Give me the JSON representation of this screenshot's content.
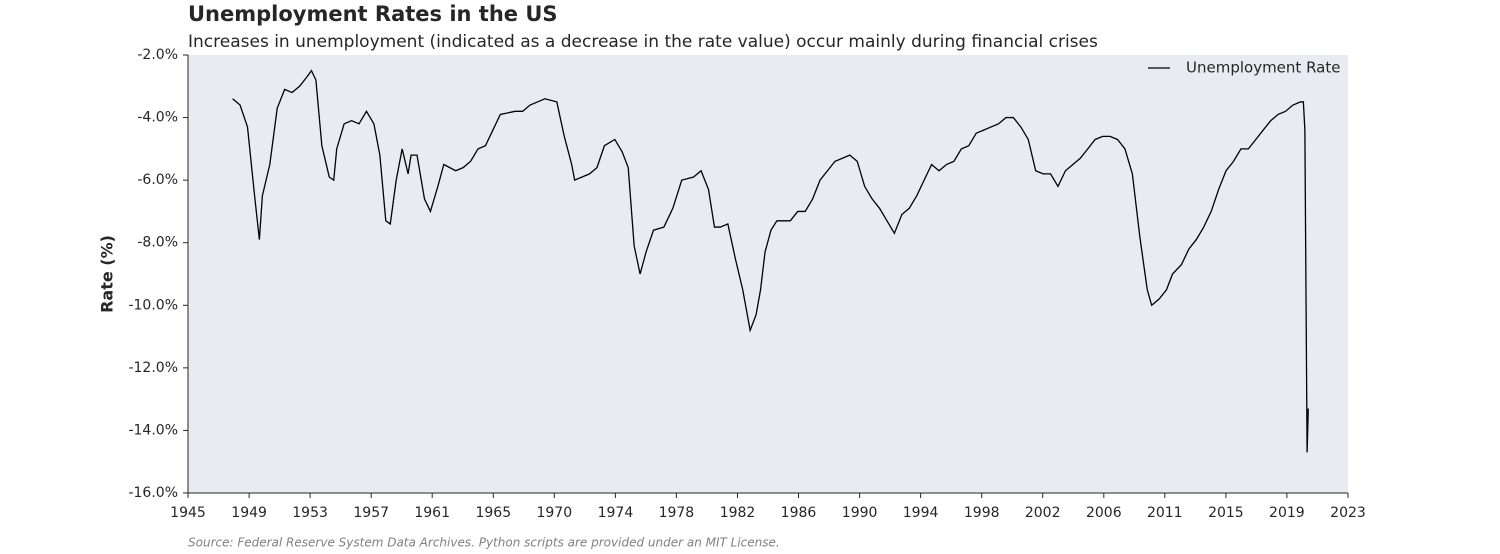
{
  "chart_data": {
    "type": "line",
    "title": "Unemployment Rates in the US",
    "subtitle": "Increases in unemployment (indicated as a decrease in the rate value) occur mainly during financial crises",
    "ylabel": "Rate (%)",
    "source": "Source: Federal Reserve System Data Archives. Python scripts are provided under an MIT License.",
    "legend": "upper right",
    "grid": false,
    "xlim": [
      1945,
      2023
    ],
    "xticks": [
      {
        "value": 1945,
        "label": "1945"
      },
      {
        "value": 1949.11,
        "label": "1949"
      },
      {
        "value": 1953.21,
        "label": "1953"
      },
      {
        "value": 1957.32,
        "label": "1957"
      },
      {
        "value": 1961.42,
        "label": "1961"
      },
      {
        "value": 1965.53,
        "label": "1965"
      },
      {
        "value": 1969.63,
        "label": "1970"
      },
      {
        "value": 1973.74,
        "label": "1974"
      },
      {
        "value": 1977.84,
        "label": "1978"
      },
      {
        "value": 1981.95,
        "label": "1982"
      },
      {
        "value": 1986.05,
        "label": "1986"
      },
      {
        "value": 1990.16,
        "label": "1990"
      },
      {
        "value": 1994.26,
        "label": "1994"
      },
      {
        "value": 1998.37,
        "label": "1998"
      },
      {
        "value": 2002.47,
        "label": "2002"
      },
      {
        "value": 2006.58,
        "label": "2006"
      },
      {
        "value": 2010.68,
        "label": "2011"
      },
      {
        "value": 2014.79,
        "label": "2015"
      },
      {
        "value": 2018.89,
        "label": "2019"
      },
      {
        "value": 2023,
        "label": "2023"
      }
    ],
    "ylim": [
      -16,
      -2
    ],
    "yticks": [
      {
        "value": -2,
        "label": "-2.0%"
      },
      {
        "value": -4,
        "label": "-4.0%"
      },
      {
        "value": -6,
        "label": "-6.0%"
      },
      {
        "value": -8,
        "label": "-8.0%"
      },
      {
        "value": -10,
        "label": "-10.0%"
      },
      {
        "value": -12,
        "label": "-12.0%"
      },
      {
        "value": -14,
        "label": "-14.0%"
      },
      {
        "value": -16,
        "label": "-16.0%"
      }
    ],
    "x": [
      1948.0,
      1948.5,
      1949.0,
      1949.5,
      1949.8,
      1950.0,
      1950.5,
      1951.0,
      1951.5,
      1952.0,
      1952.5,
      1953.0,
      1953.3,
      1953.6,
      1954.0,
      1954.5,
      1954.8,
      1955.0,
      1955.5,
      1956.0,
      1956.5,
      1957.0,
      1957.5,
      1957.9,
      1958.3,
      1958.6,
      1959.0,
      1959.4,
      1959.8,
      1960.0,
      1960.4,
      1960.9,
      1961.3,
      1961.8,
      1962.2,
      1963.0,
      1963.5,
      1964.0,
      1964.5,
      1965.0,
      1965.5,
      1966.0,
      1967.0,
      1967.5,
      1968.0,
      1968.5,
      1969.0,
      1969.8,
      1970.3,
      1970.8,
      1971.0,
      1971.5,
      1972.0,
      1972.5,
      1973.0,
      1973.7,
      1974.2,
      1974.6,
      1975.0,
      1975.4,
      1975.8,
      1976.3,
      1977.0,
      1977.6,
      1978.2,
      1979.0,
      1979.5,
      1980.0,
      1980.4,
      1980.8,
      1981.3,
      1981.8,
      1982.3,
      1982.8,
      1983.2,
      1983.5,
      1983.8,
      1984.2,
      1984.6,
      1985.0,
      1985.5,
      1986.0,
      1986.5,
      1987.0,
      1987.5,
      1988.0,
      1988.5,
      1989.0,
      1989.5,
      1990.0,
      1990.5,
      1991.0,
      1991.5,
      1992.0,
      1992.5,
      1993.0,
      1993.5,
      1994.0,
      1994.5,
      1995.0,
      1995.5,
      1996.0,
      1996.5,
      1997.0,
      1997.5,
      1998.0,
      1998.5,
      1999.0,
      1999.5,
      2000.0,
      2000.5,
      2001.0,
      2001.5,
      2002.0,
      2002.5,
      2003.0,
      2003.5,
      2004.0,
      2004.5,
      2005.0,
      2005.5,
      2006.0,
      2006.5,
      2007.0,
      2007.5,
      2008.0,
      2008.5,
      2009.0,
      2009.5,
      2009.8,
      2010.3,
      2010.8,
      2011.2,
      2011.8,
      2012.3,
      2012.8,
      2013.3,
      2013.8,
      2014.3,
      2014.8,
      2015.3,
      2015.8,
      2016.3,
      2016.8,
      2017.3,
      2017.8,
      2018.3,
      2018.8,
      2019.3,
      2019.8,
      2020.0,
      2020.1,
      2020.25,
      2020.33
    ],
    "series": [
      {
        "name": "Unemployment Rate",
        "color": "#000000",
        "values": [
          -3.4,
          -3.6,
          -4.3,
          -6.6,
          -7.9,
          -6.5,
          -5.5,
          -3.7,
          -3.1,
          -3.2,
          -3.0,
          -2.7,
          -2.5,
          -2.8,
          -4.9,
          -5.9,
          -6.0,
          -5.0,
          -4.2,
          -4.1,
          -4.2,
          -3.8,
          -4.2,
          -5.2,
          -7.3,
          -7.4,
          -6.0,
          -5.0,
          -5.8,
          -5.2,
          -5.2,
          -6.6,
          -7.0,
          -6.2,
          -5.5,
          -5.7,
          -5.6,
          -5.4,
          -5.0,
          -4.9,
          -4.4,
          -3.9,
          -3.8,
          -3.8,
          -3.6,
          -3.5,
          -3.4,
          -3.5,
          -4.6,
          -5.5,
          -6.0,
          -5.9,
          -5.8,
          -5.6,
          -4.9,
          -4.7,
          -5.1,
          -5.6,
          -8.1,
          -9.0,
          -8.3,
          -7.6,
          -7.5,
          -6.9,
          -6.0,
          -5.9,
          -5.7,
          -6.3,
          -7.5,
          -7.5,
          -7.4,
          -8.5,
          -9.5,
          -10.8,
          -10.3,
          -9.5,
          -8.3,
          -7.6,
          -7.3,
          -7.3,
          -7.3,
          -7.0,
          -7.0,
          -6.6,
          -6.0,
          -5.7,
          -5.4,
          -5.3,
          -5.2,
          -5.4,
          -6.2,
          -6.6,
          -6.9,
          -7.3,
          -7.7,
          -7.1,
          -6.9,
          -6.5,
          -6.0,
          -5.5,
          -5.7,
          -5.5,
          -5.4,
          -5.0,
          -4.9,
          -4.5,
          -4.4,
          -4.3,
          -4.2,
          -4.0,
          -4.0,
          -4.3,
          -4.7,
          -5.7,
          -5.8,
          -5.8,
          -6.2,
          -5.7,
          -5.5,
          -5.3,
          -5.0,
          -4.7,
          -4.6,
          -4.6,
          -4.7,
          -5.0,
          -5.8,
          -7.8,
          -9.5,
          -10.0,
          -9.8,
          -9.5,
          -9.0,
          -8.7,
          -8.2,
          -7.9,
          -7.5,
          -7.0,
          -6.3,
          -5.7,
          -5.4,
          -5.0,
          -5.0,
          -4.7,
          -4.4,
          -4.1,
          -3.9,
          -3.8,
          -3.6,
          -3.5,
          -3.5,
          -4.4,
          -14.7,
          -13.3
        ]
      }
    ]
  }
}
